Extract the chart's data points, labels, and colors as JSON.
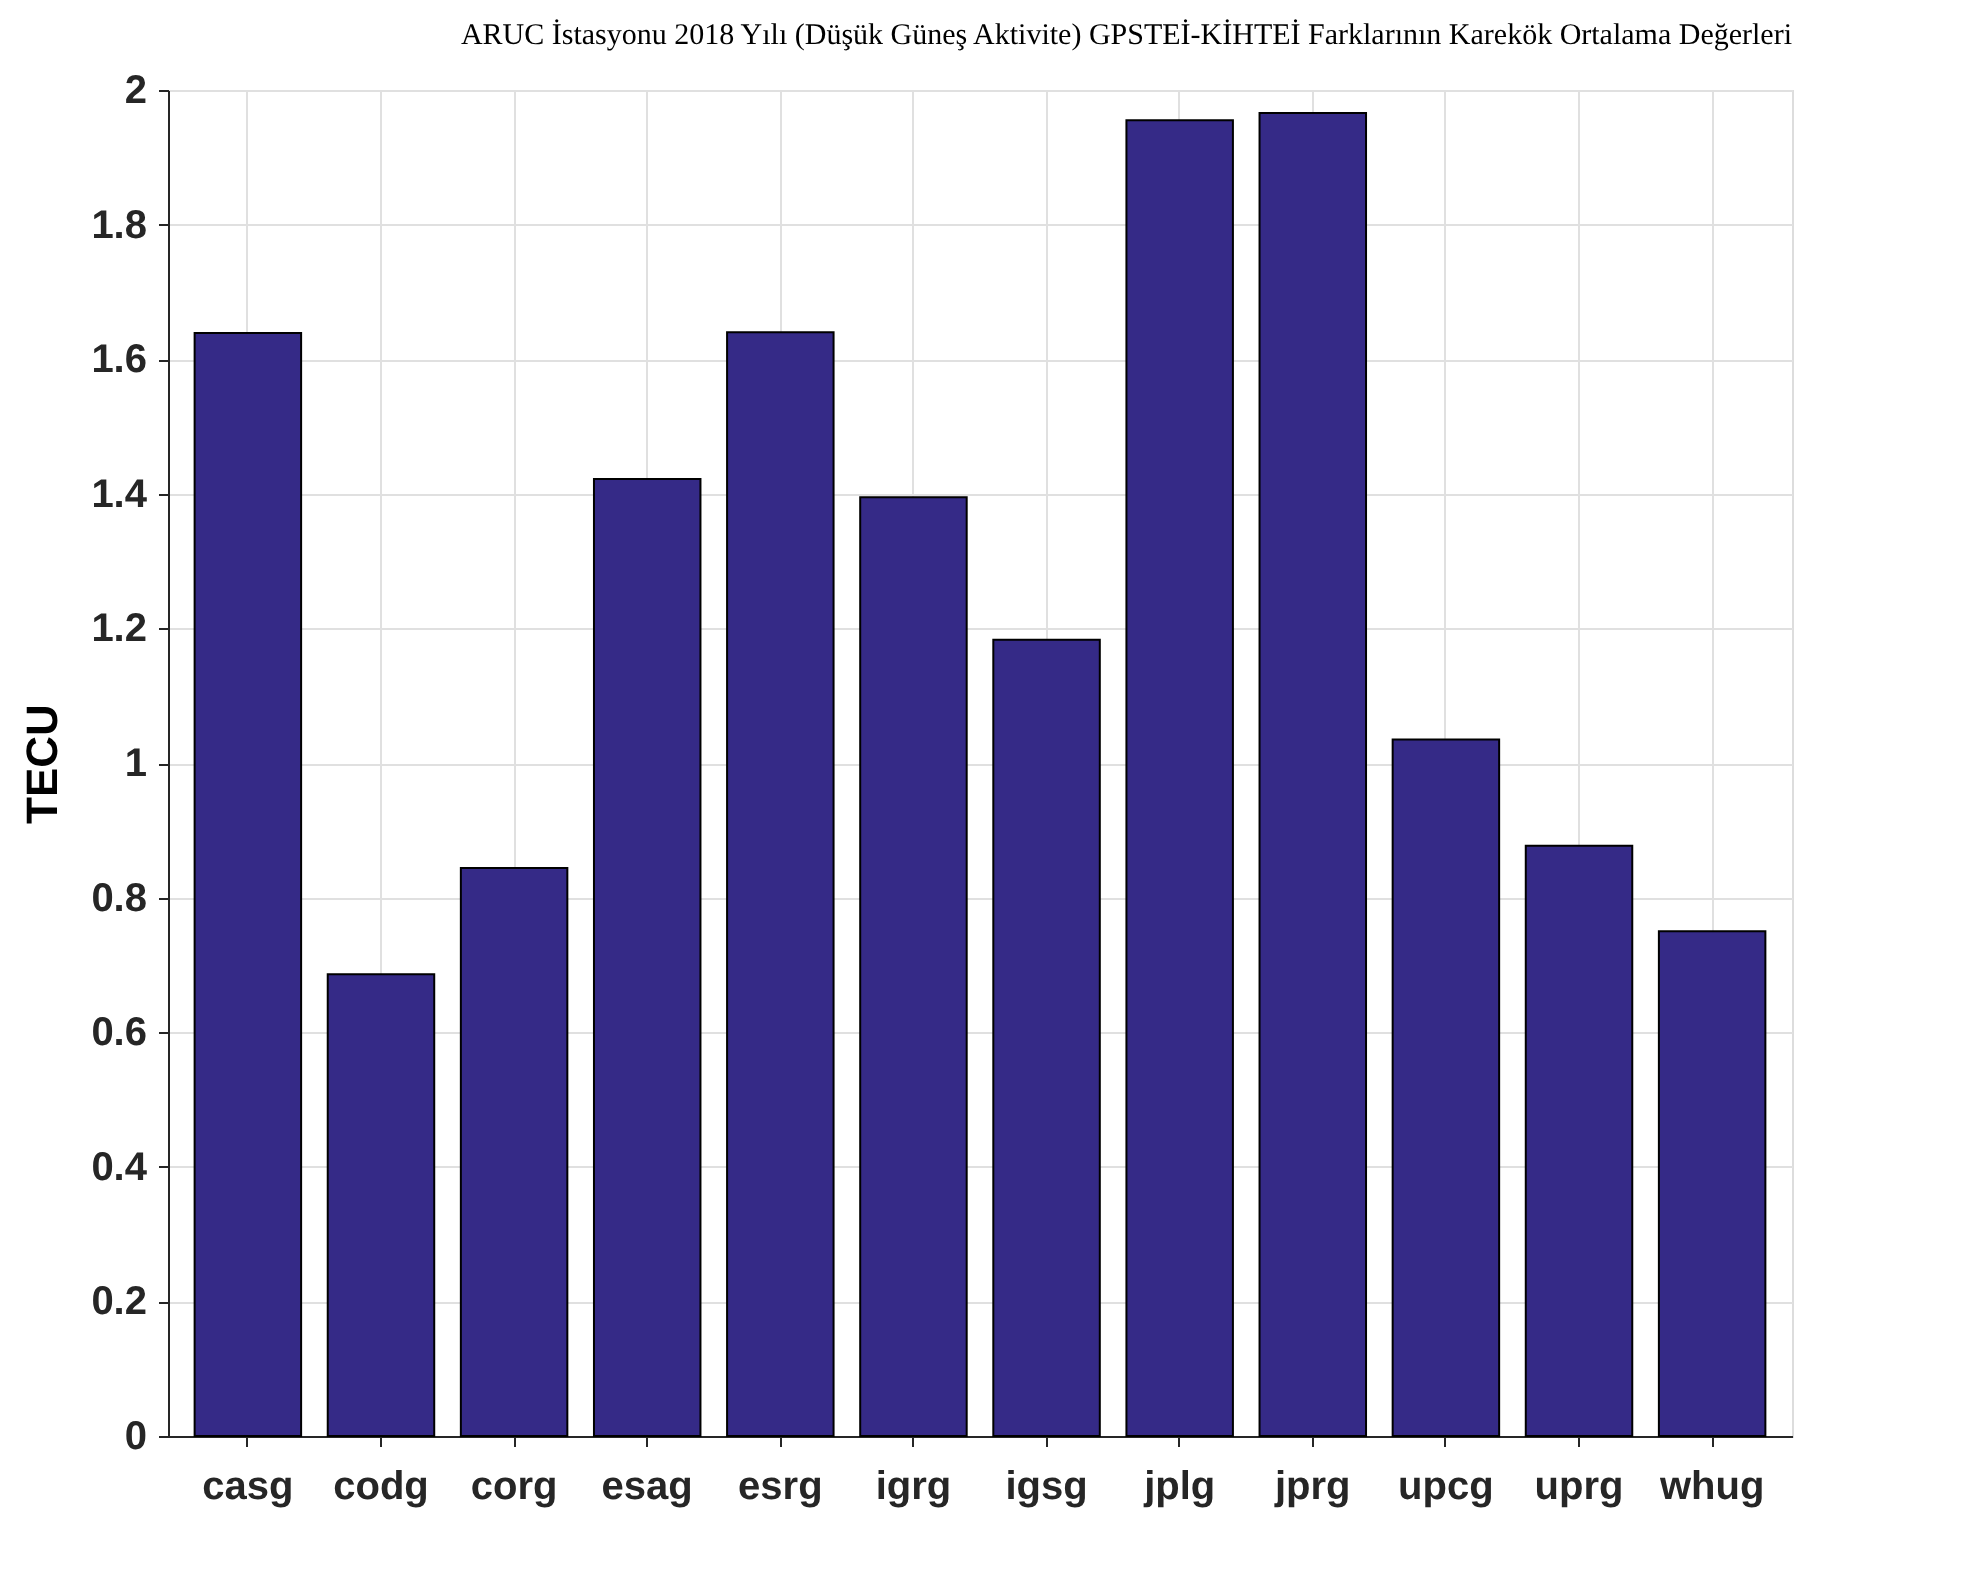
{
  "chart_data": {
    "type": "bar",
    "title": "ARUC İstasyonu 2018 Yılı (Düşük Güneş Aktivite) GPSTEİ-KİHTEİ Farklarının Karekök Ortalama Değerleri",
    "ylabel": "TECU",
    "categories": [
      "casg",
      "codg",
      "corg",
      "esag",
      "esrg",
      "igrg",
      "igsg",
      "jplg",
      "jprg",
      "upcg",
      "uprg",
      "whug"
    ],
    "values": [
      1.639,
      0.686,
      0.844,
      1.422,
      1.64,
      1.395,
      1.183,
      1.955,
      1.966,
      1.035,
      0.877,
      0.75
    ],
    "color": "#352a87",
    "ylim": [
      0,
      2
    ],
    "yticks": [
      0,
      0.2,
      0.4,
      0.6,
      0.8,
      1,
      1.2,
      1.4,
      1.6,
      1.8,
      2
    ],
    "grid": true
  }
}
